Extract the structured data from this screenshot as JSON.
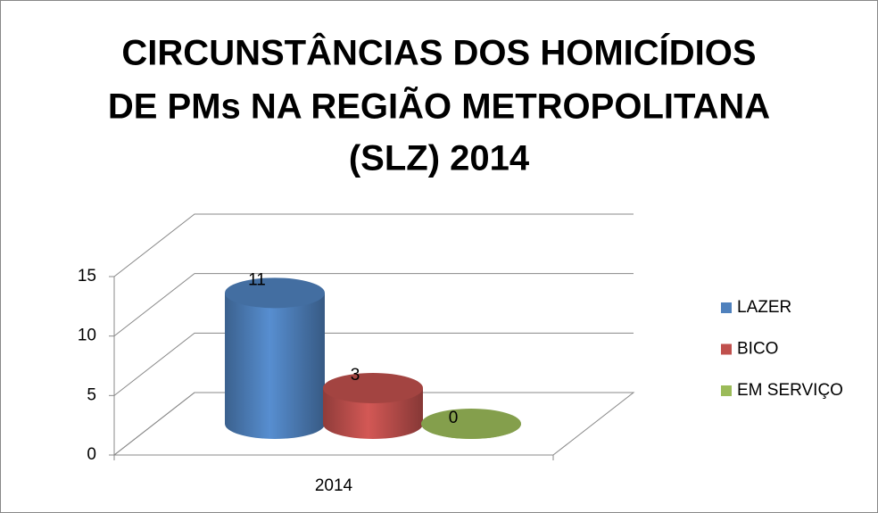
{
  "chart_data": {
    "type": "bar3d",
    "title": [
      "CIRCUNSTÂNCIAS DOS HOMICÍDIOS",
      "DE PMs NA REGIÃO METROPOLITANA",
      "(SLZ) 2014"
    ],
    "categories": [
      "2014"
    ],
    "series": [
      {
        "name": "LAZER",
        "color": "#4f81bd",
        "values": [
          11
        ]
      },
      {
        "name": "BICO",
        "color": "#c0504d",
        "values": [
          3
        ]
      },
      {
        "name": "EM SERVIÇO",
        "color": "#9bbb59",
        "values": [
          0
        ]
      }
    ],
    "ylim": [
      0,
      15
    ],
    "yticks": [
      0,
      5,
      10,
      15
    ],
    "grid": true,
    "legend": "right"
  }
}
